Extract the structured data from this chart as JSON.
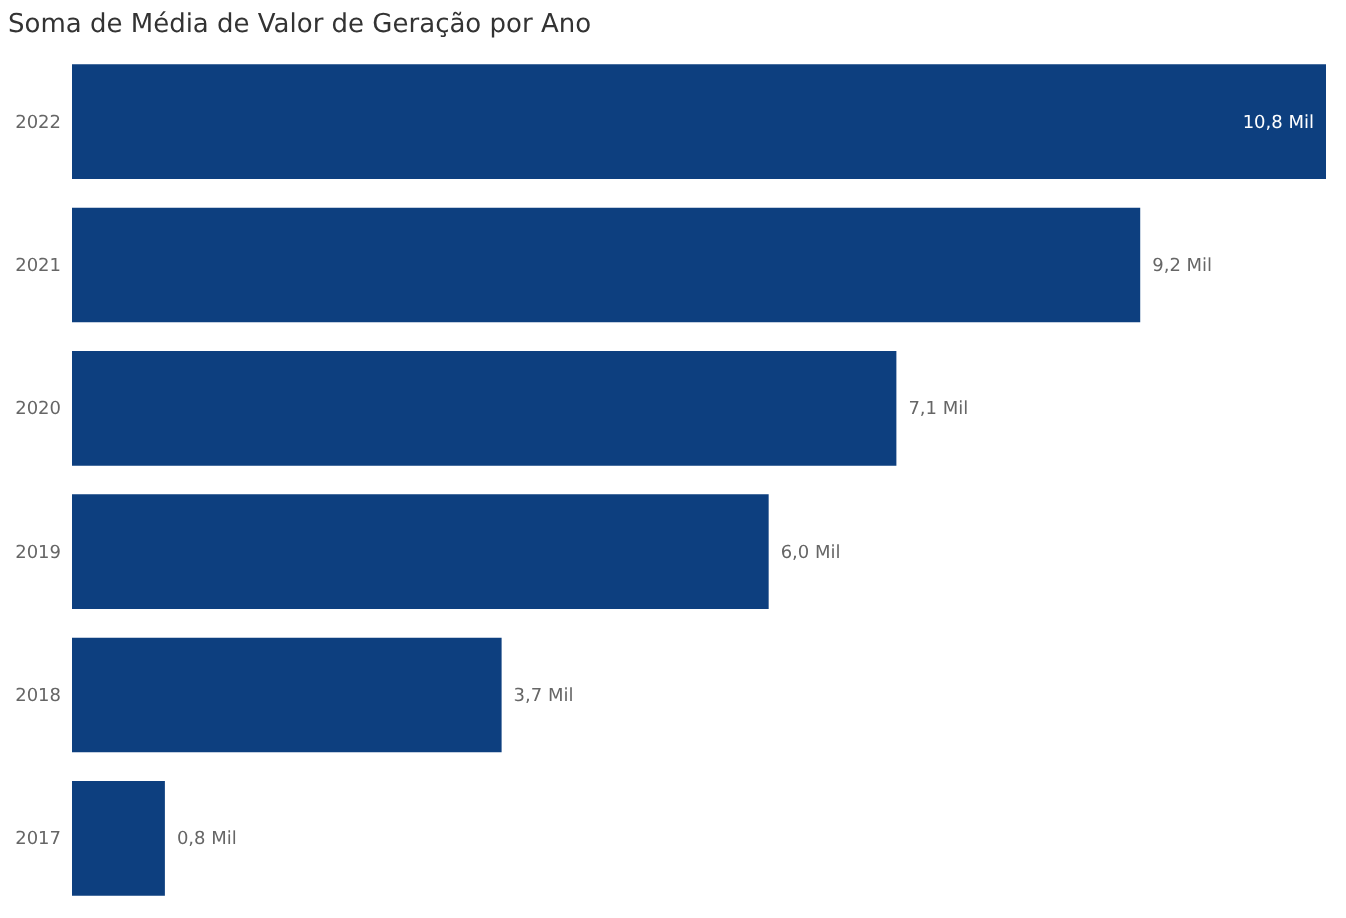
{
  "chart_data": {
    "type": "bar",
    "orientation": "horizontal",
    "title": "Soma de Média de Valor de Geração por Ano",
    "categories": [
      "2022",
      "2021",
      "2020",
      "2019",
      "2018",
      "2017"
    ],
    "values": [
      10.8,
      9.2,
      7.1,
      6.0,
      3.7,
      0.8
    ],
    "value_labels": [
      "10,8 Mil",
      "9,2 Mil",
      "7,1 Mil",
      "6,0 Mil",
      "3,7 Mil",
      "0,8 Mil"
    ],
    "color": "#0d3f7f"
  }
}
